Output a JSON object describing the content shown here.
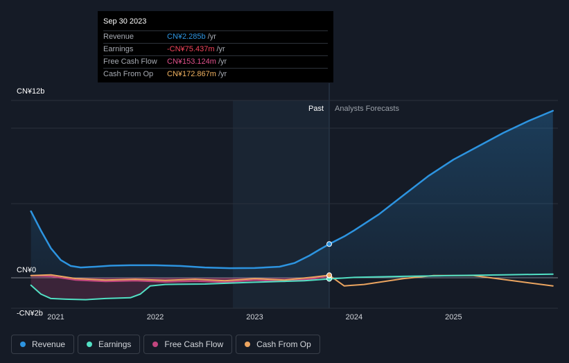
{
  "tooltip": {
    "date": "Sep 30 2023",
    "rows": [
      {
        "label": "Revenue",
        "value": "CN¥2.285b",
        "unit": "/yr",
        "color": "#2d94e0"
      },
      {
        "label": "Earnings",
        "value": "-CN¥75.437m",
        "unit": "/yr",
        "color": "#f5455c"
      },
      {
        "label": "Free Cash Flow",
        "value": "CN¥153.124m",
        "unit": "/yr",
        "color": "#e0518c"
      },
      {
        "label": "Cash From Op",
        "value": "CN¥172.867m",
        "unit": "/yr",
        "color": "#f2b361"
      }
    ]
  },
  "legend": [
    {
      "label": "Revenue",
      "color": "#2d94e0"
    },
    {
      "label": "Earnings",
      "color": "#52e0c4"
    },
    {
      "label": "Free Cash Flow",
      "color": "#c2467f"
    },
    {
      "label": "Cash From Op",
      "color": "#eca560"
    }
  ],
  "chart_data": {
    "type": "line",
    "y_unit": "CN¥ billions",
    "ylim": [
      -3,
      13
    ],
    "y_tick_labels": [
      {
        "value": 12,
        "label": "CN¥12b"
      },
      {
        "value": 0,
        "label": "CN¥0"
      },
      {
        "value": -2,
        "label": "-CN¥2b"
      }
    ],
    "x_tick_labels": [
      {
        "value": 2021,
        "label": "2021"
      },
      {
        "value": 2022,
        "label": "2022"
      },
      {
        "value": 2023,
        "label": "2023"
      },
      {
        "value": 2024,
        "label": "2024"
      },
      {
        "value": 2025,
        "label": "2025"
      }
    ],
    "xlim": [
      2020.55,
      2026.05
    ],
    "past_label": "Past",
    "forecast_label": "Analysts Forecasts",
    "divider_x": 2023.75,
    "series": [
      {
        "name": "Revenue",
        "color": "#2d94e0",
        "points": [
          [
            2020.75,
            4.5
          ],
          [
            2020.85,
            3.2
          ],
          [
            2020.95,
            2.0
          ],
          [
            2021.05,
            1.2
          ],
          [
            2021.15,
            0.8
          ],
          [
            2021.25,
            0.7
          ],
          [
            2021.4,
            0.75
          ],
          [
            2021.55,
            0.82
          ],
          [
            2021.75,
            0.85
          ],
          [
            2022.0,
            0.85
          ],
          [
            2022.25,
            0.8
          ],
          [
            2022.5,
            0.7
          ],
          [
            2022.75,
            0.65
          ],
          [
            2023.0,
            0.66
          ],
          [
            2023.25,
            0.75
          ],
          [
            2023.4,
            1.0
          ],
          [
            2023.55,
            1.5
          ],
          [
            2023.65,
            1.9
          ],
          [
            2023.75,
            2.285
          ],
          [
            2023.9,
            2.8
          ],
          [
            2024.0,
            3.2
          ],
          [
            2024.25,
            4.3
          ],
          [
            2024.5,
            5.6
          ],
          [
            2024.75,
            6.9
          ],
          [
            2025.0,
            8.0
          ],
          [
            2025.25,
            8.9
          ],
          [
            2025.5,
            9.8
          ],
          [
            2025.75,
            10.6
          ],
          [
            2026.0,
            11.3
          ]
        ]
      },
      {
        "name": "Earnings",
        "color": "#52e0c4",
        "points": [
          [
            2020.75,
            -0.5
          ],
          [
            2020.85,
            -1.1
          ],
          [
            2020.95,
            -1.4
          ],
          [
            2021.1,
            -1.45
          ],
          [
            2021.3,
            -1.48
          ],
          [
            2021.5,
            -1.4
          ],
          [
            2021.75,
            -1.35
          ],
          [
            2021.85,
            -1.1
          ],
          [
            2021.95,
            -0.55
          ],
          [
            2022.1,
            -0.45
          ],
          [
            2022.5,
            -0.42
          ],
          [
            2023.0,
            -0.3
          ],
          [
            2023.5,
            -0.2
          ],
          [
            2023.75,
            -0.075
          ],
          [
            2024.0,
            0.03
          ],
          [
            2024.5,
            0.1
          ],
          [
            2025.0,
            0.15
          ],
          [
            2025.5,
            0.2
          ],
          [
            2026.0,
            0.25
          ]
        ]
      },
      {
        "name": "Free Cash Flow",
        "color": "#c2467f",
        "points": [
          [
            2020.75,
            0.15
          ],
          [
            2020.95,
            0.1
          ],
          [
            2021.2,
            -0.15
          ],
          [
            2021.5,
            -0.25
          ],
          [
            2021.8,
            -0.2
          ],
          [
            2022.1,
            -0.28
          ],
          [
            2022.4,
            -0.22
          ],
          [
            2022.7,
            -0.3
          ],
          [
            2023.0,
            -0.15
          ],
          [
            2023.3,
            -0.25
          ],
          [
            2023.6,
            -0.05
          ],
          [
            2023.75,
            0.153
          ]
        ]
      },
      {
        "name": "Cash From Op",
        "color": "#eca560",
        "points": [
          [
            2020.75,
            0.15
          ],
          [
            2020.95,
            0.2
          ],
          [
            2021.2,
            -0.05
          ],
          [
            2021.5,
            -0.15
          ],
          [
            2021.8,
            -0.1
          ],
          [
            2022.1,
            -0.18
          ],
          [
            2022.4,
            -0.1
          ],
          [
            2022.7,
            -0.2
          ],
          [
            2023.0,
            -0.05
          ],
          [
            2023.3,
            -0.15
          ],
          [
            2023.6,
            0.05
          ],
          [
            2023.75,
            0.173
          ],
          [
            2023.9,
            -0.55
          ],
          [
            2024.1,
            -0.45
          ],
          [
            2024.5,
            -0.05
          ],
          [
            2024.8,
            0.15
          ],
          [
            2025.2,
            0.15
          ],
          [
            2025.6,
            -0.2
          ],
          [
            2026.0,
            -0.55
          ]
        ]
      }
    ]
  }
}
